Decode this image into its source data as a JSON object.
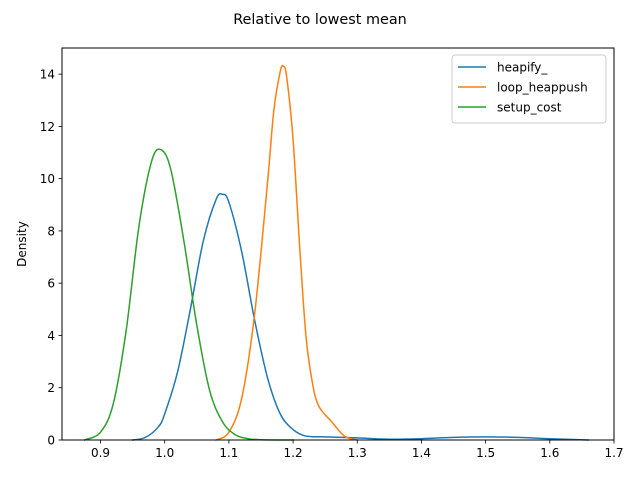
{
  "chart_data": {
    "type": "line",
    "title": "Relative to lowest mean",
    "xlabel": "",
    "ylabel": "Density",
    "xlim": [
      0.84,
      1.7
    ],
    "ylim": [
      0,
      15
    ],
    "x_ticks": [
      0.9,
      1.0,
      1.1,
      1.2,
      1.3,
      1.4,
      1.5,
      1.6,
      1.7
    ],
    "x_tick_labels": [
      "0.9",
      "1.0",
      "1.1",
      "1.2",
      "1.3",
      "1.4",
      "1.5",
      "1.6",
      "1.7"
    ],
    "y_ticks": [
      0,
      2,
      4,
      6,
      8,
      10,
      12,
      14
    ],
    "y_tick_labels": [
      "0",
      "2",
      "4",
      "6",
      "8",
      "10",
      "12",
      "14"
    ],
    "grid": false,
    "legend_position": "top-right",
    "series": [
      {
        "name": "heapify_",
        "color": "#1f77b4",
        "x": [
          0.95,
          0.97,
          0.99,
          1.0,
          1.02,
          1.04,
          1.06,
          1.08,
          1.09,
          1.1,
          1.12,
          1.14,
          1.16,
          1.18,
          1.2,
          1.22,
          1.25,
          1.3,
          1.35,
          1.4,
          1.45,
          1.5,
          1.55,
          1.6,
          1.66
        ],
        "y": [
          0.0,
          0.1,
          0.5,
          1.0,
          2.6,
          5.0,
          7.6,
          9.2,
          9.4,
          9.1,
          7.2,
          4.6,
          2.4,
          1.0,
          0.4,
          0.15,
          0.12,
          0.08,
          0.03,
          0.05,
          0.1,
          0.12,
          0.1,
          0.05,
          0.0
        ]
      },
      {
        "name": "loop_heappush",
        "color": "#ff7f0e",
        "x": [
          1.08,
          1.1,
          1.12,
          1.14,
          1.16,
          1.17,
          1.18,
          1.185,
          1.19,
          1.2,
          1.21,
          1.22,
          1.23,
          1.24,
          1.26,
          1.28,
          1.3
        ],
        "y": [
          0.0,
          0.3,
          1.6,
          4.8,
          9.8,
          12.6,
          14.1,
          14.3,
          13.9,
          11.5,
          7.5,
          4.0,
          2.2,
          1.3,
          0.7,
          0.15,
          0.0
        ]
      },
      {
        "name": "setup_cost",
        "color": "#2ca02c",
        "x": [
          0.875,
          0.9,
          0.92,
          0.94,
          0.96,
          0.98,
          0.995,
          1.01,
          1.03,
          1.05,
          1.07,
          1.09,
          1.11,
          1.13,
          1.15,
          1.2
        ],
        "y": [
          0.0,
          0.3,
          1.4,
          4.2,
          8.2,
          10.7,
          11.1,
          10.3,
          7.6,
          4.4,
          1.9,
          0.7,
          0.2,
          0.05,
          0.01,
          0.0
        ]
      }
    ]
  }
}
